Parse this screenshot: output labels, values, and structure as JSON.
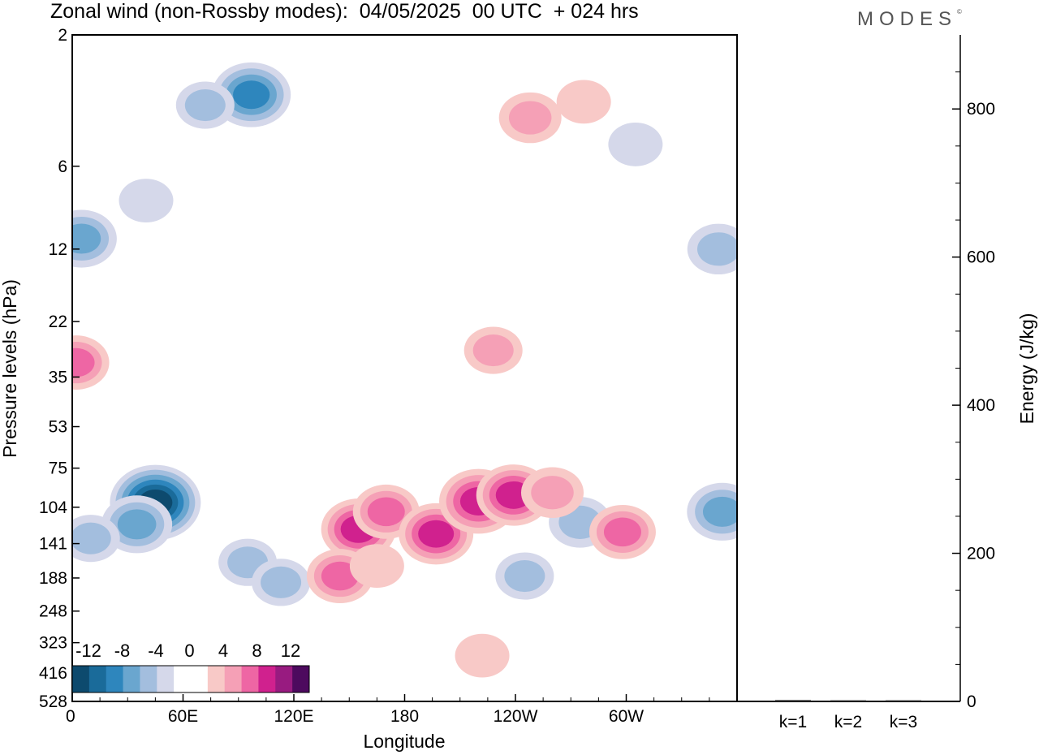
{
  "header": {
    "title": "Zonal wind (non-Rossby modes):  04/05/2025  00 UTC  + 024 hrs",
    "brand": "MODES",
    "brand_mark": "©"
  },
  "colors": {
    "neg": [
      "#0d4a6e",
      "#1a6b9a",
      "#2e86bd",
      "#6aa6cf",
      "#a3bede",
      "#d5d8ea"
    ],
    "zero": "#ffffff",
    "pos": [
      "#f8c9c7",
      "#f5a0b6",
      "#ee66a4",
      "#d0218e",
      "#981b80",
      "#4d0a5e"
    ]
  },
  "chart_data": [
    {
      "type": "heatmap",
      "title": "Zonal wind (non-Rossby modes):  04/05/2025  00 UTC  + 024 hrs",
      "xlabel": "Longitude",
      "ylabel": "Pressure levels (hPa)",
      "x_ticks": [
        "0",
        "60E",
        "120E",
        "180",
        "120W",
        "60W"
      ],
      "x_tick_degrees": [
        0,
        60,
        120,
        180,
        240,
        300
      ],
      "x_range": [
        0,
        360
      ],
      "y_ticks": [
        "2",
        "6",
        "12",
        "22",
        "35",
        "53",
        "75",
        "104",
        "141",
        "188",
        "248",
        "323",
        "416",
        "528"
      ],
      "y_scale": "log",
      "colorbar": {
        "labels": [
          "-12",
          "-8",
          "-4",
          "0",
          "4",
          "8",
          "12"
        ],
        "levels": [
          -14,
          -12,
          -10,
          -8,
          -6,
          -4,
          -2,
          2,
          4,
          6,
          8,
          10,
          12,
          14
        ]
      },
      "features": [
        {
          "lon": 45,
          "hpa": 100,
          "value": -12
        },
        {
          "lon": 35,
          "hpa": 120,
          "value": -7
        },
        {
          "lon": 10,
          "hpa": 135,
          "value": -4
        },
        {
          "lon": 97,
          "hpa": 3.3,
          "value": -9
        },
        {
          "lon": 72,
          "hpa": 3.6,
          "value": -4
        },
        {
          "lon": 5,
          "hpa": 11,
          "value": -7
        },
        {
          "lon": 40,
          "hpa": 8,
          "value": -3
        },
        {
          "lon": 95,
          "hpa": 165,
          "value": -4
        },
        {
          "lon": 113,
          "hpa": 195,
          "value": -4
        },
        {
          "lon": 155,
          "hpa": 125,
          "value": 8
        },
        {
          "lon": 145,
          "hpa": 185,
          "value": 6
        },
        {
          "lon": 165,
          "hpa": 170,
          "value": 3
        },
        {
          "lon": 170,
          "hpa": 108,
          "value": 6
        },
        {
          "lon": 197,
          "hpa": 130,
          "value": 8
        },
        {
          "lon": 220,
          "hpa": 99,
          "value": 9
        },
        {
          "lon": 239,
          "hpa": 94,
          "value": 8
        },
        {
          "lon": 260,
          "hpa": 92,
          "value": 5
        },
        {
          "lon": 298,
          "hpa": 128,
          "value": 6
        },
        {
          "lon": 275,
          "hpa": 118,
          "value": -5
        },
        {
          "lon": 245,
          "hpa": 185,
          "value": -4
        },
        {
          "lon": 352,
          "hpa": 108,
          "value": -7
        },
        {
          "lon": 2,
          "hpa": 31,
          "value": 6
        },
        {
          "lon": 248,
          "hpa": 4,
          "value": 5
        },
        {
          "lon": 277,
          "hpa": 3.5,
          "value": 3
        },
        {
          "lon": 228,
          "hpa": 28,
          "value": 4
        },
        {
          "lon": 222,
          "hpa": 360,
          "value": 3
        },
        {
          "lon": 305,
          "hpa": 5,
          "value": -3
        },
        {
          "lon": 350,
          "hpa": 12,
          "value": -5
        }
      ]
    },
    {
      "type": "bar",
      "categories": [
        "k=1",
        "k=2",
        "k=3"
      ],
      "values": [
        2,
        1,
        1
      ],
      "ylabel": "Energy (J/kg)",
      "ylim": [
        0,
        900
      ],
      "y_ticks": [
        0,
        200,
        400,
        600,
        800
      ]
    }
  ]
}
